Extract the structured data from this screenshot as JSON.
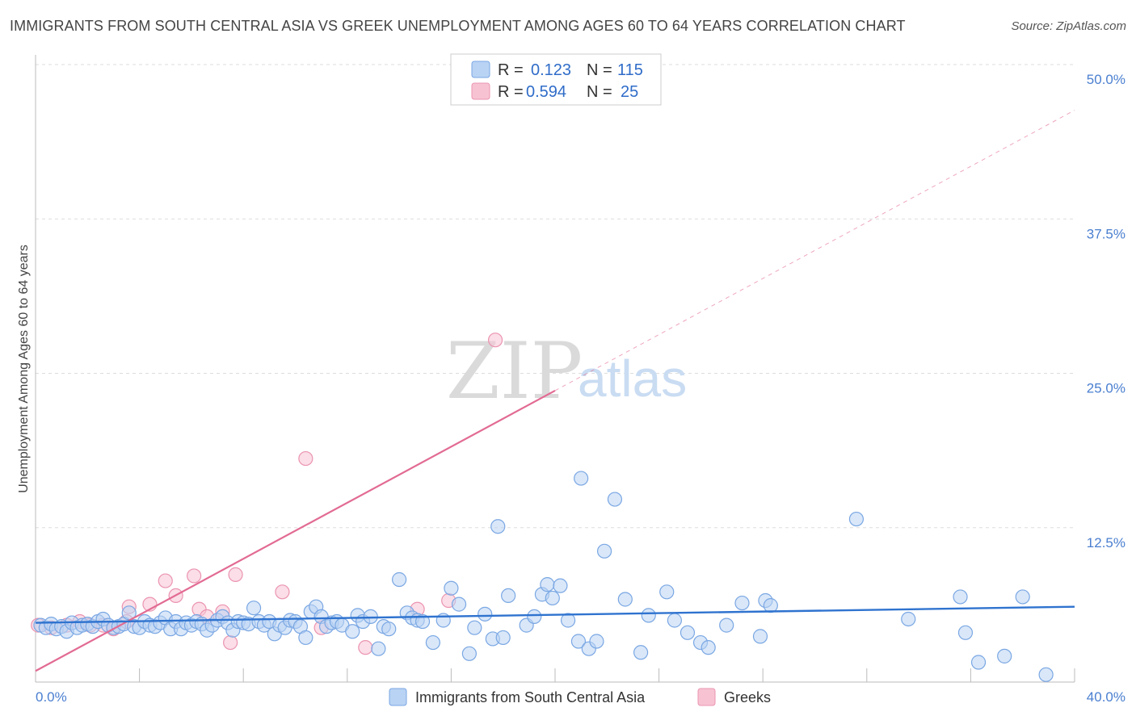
{
  "title": "IMMIGRANTS FROM SOUTH CENTRAL ASIA VS GREEK UNEMPLOYMENT AMONG AGES 60 TO 64 YEARS CORRELATION CHART",
  "source": "Source: ZipAtlas.com",
  "watermark": {
    "part1": "ZIP",
    "part2": "atlas"
  },
  "colors": {
    "blue_fill": "#b9d3f4",
    "blue_stroke": "#7aa7e3",
    "blue_line": "#2f73cf",
    "pink_fill": "#f7c3d3",
    "pink_stroke": "#eb94b0",
    "pink_line": "#e26b93",
    "grid": "#dddddd",
    "tick_text": "#4a7fd0"
  },
  "legend": {
    "rows": [
      {
        "r_label": "R =",
        "r_value": "0.123",
        "n_label": "N =",
        "n_value": "115"
      },
      {
        "r_label": "R =",
        "r_value": "0.594",
        "n_label": "N =",
        "n_value": "25"
      }
    ]
  },
  "chart_data": {
    "type": "scatter",
    "title": "IMMIGRANTS FROM SOUTH CENTRAL ASIA VS GREEK UNEMPLOYMENT AMONG AGES 60 TO 64 YEARS CORRELATION CHART",
    "xlabel": "",
    "ylabel": "Unemployment Among Ages 60 to 64 years",
    "xlim": [
      0,
      40
    ],
    "ylim": [
      0,
      50
    ],
    "x_tick_labels": [
      "0.0%",
      "40.0%"
    ],
    "y_ticks": [
      12.5,
      25.0,
      37.5,
      50.0
    ],
    "y_tick_labels": [
      "12.5%",
      "25.0%",
      "37.5%",
      "50.0%"
    ],
    "grid": true,
    "series": [
      {
        "name": "Immigrants from South Central Asia",
        "r": 0.123,
        "n": 115,
        "trend": {
          "x0": 0,
          "y0": 4.8,
          "x1": 40,
          "y1": 6.1
        },
        "points": [
          [
            0.2,
            4.6
          ],
          [
            0.4,
            4.4
          ],
          [
            0.6,
            4.7
          ],
          [
            0.8,
            4.3
          ],
          [
            1.0,
            4.5
          ],
          [
            1.2,
            4.1
          ],
          [
            1.4,
            4.8
          ],
          [
            1.6,
            4.4
          ],
          [
            1.8,
            4.6
          ],
          [
            2.0,
            4.7
          ],
          [
            2.2,
            4.5
          ],
          [
            2.4,
            4.9
          ],
          [
            2.6,
            5.1
          ],
          [
            2.8,
            4.6
          ],
          [
            3.0,
            4.4
          ],
          [
            3.2,
            4.5
          ],
          [
            3.4,
            4.7
          ],
          [
            3.6,
            5.6
          ],
          [
            3.8,
            4.5
          ],
          [
            4.0,
            4.4
          ],
          [
            4.2,
            4.9
          ],
          [
            4.4,
            4.6
          ],
          [
            4.6,
            4.5
          ],
          [
            4.8,
            4.8
          ],
          [
            5.0,
            5.2
          ],
          [
            5.2,
            4.3
          ],
          [
            5.4,
            4.9
          ],
          [
            5.6,
            4.3
          ],
          [
            5.8,
            4.8
          ],
          [
            6.0,
            4.6
          ],
          [
            6.2,
            4.9
          ],
          [
            6.4,
            4.7
          ],
          [
            6.6,
            4.2
          ],
          [
            6.8,
            4.6
          ],
          [
            7.0,
            5.0
          ],
          [
            7.2,
            5.3
          ],
          [
            7.4,
            4.8
          ],
          [
            7.6,
            4.2
          ],
          [
            7.8,
            4.9
          ],
          [
            8.0,
            4.8
          ],
          [
            8.2,
            4.7
          ],
          [
            8.4,
            6.0
          ],
          [
            8.6,
            4.9
          ],
          [
            8.8,
            4.6
          ],
          [
            9.0,
            4.9
          ],
          [
            9.2,
            3.9
          ],
          [
            9.4,
            4.6
          ],
          [
            9.6,
            4.4
          ],
          [
            9.8,
            5.0
          ],
          [
            10.0,
            4.9
          ],
          [
            10.2,
            4.5
          ],
          [
            10.4,
            3.6
          ],
          [
            10.6,
            5.7
          ],
          [
            10.8,
            6.1
          ],
          [
            11.0,
            5.3
          ],
          [
            11.2,
            4.5
          ],
          [
            11.4,
            4.8
          ],
          [
            11.6,
            4.9
          ],
          [
            11.8,
            4.6
          ],
          [
            12.2,
            4.1
          ],
          [
            12.4,
            5.4
          ],
          [
            12.6,
            4.9
          ],
          [
            12.9,
            5.3
          ],
          [
            13.2,
            2.7
          ],
          [
            13.4,
            4.5
          ],
          [
            13.6,
            4.3
          ],
          [
            14.0,
            8.3
          ],
          [
            14.3,
            5.6
          ],
          [
            14.5,
            5.2
          ],
          [
            14.7,
            5.0
          ],
          [
            14.9,
            4.9
          ],
          [
            15.3,
            3.2
          ],
          [
            15.7,
            5.0
          ],
          [
            16.0,
            7.6
          ],
          [
            16.3,
            6.3
          ],
          [
            16.7,
            2.3
          ],
          [
            16.9,
            4.4
          ],
          [
            17.3,
            5.5
          ],
          [
            17.6,
            3.5
          ],
          [
            17.8,
            12.6
          ],
          [
            18.0,
            3.6
          ],
          [
            18.2,
            7.0
          ],
          [
            18.9,
            4.6
          ],
          [
            19.2,
            5.3
          ],
          [
            19.5,
            7.1
          ],
          [
            19.7,
            7.9
          ],
          [
            19.9,
            6.8
          ],
          [
            20.2,
            7.8
          ],
          [
            20.5,
            5.0
          ],
          [
            20.9,
            3.3
          ],
          [
            21.0,
            16.5
          ],
          [
            21.3,
            2.7
          ],
          [
            21.6,
            3.3
          ],
          [
            21.9,
            10.6
          ],
          [
            22.3,
            14.8
          ],
          [
            22.7,
            6.7
          ],
          [
            23.3,
            2.4
          ],
          [
            23.6,
            5.4
          ],
          [
            24.3,
            7.3
          ],
          [
            24.6,
            5.0
          ],
          [
            25.1,
            4.0
          ],
          [
            25.6,
            3.2
          ],
          [
            25.9,
            2.8
          ],
          [
            26.6,
            4.6
          ],
          [
            27.2,
            6.4
          ],
          [
            27.9,
            3.7
          ],
          [
            28.1,
            6.6
          ],
          [
            28.3,
            6.2
          ],
          [
            31.6,
            13.2
          ],
          [
            33.6,
            5.1
          ],
          [
            35.6,
            6.9
          ],
          [
            35.8,
            4.0
          ],
          [
            36.3,
            1.6
          ],
          [
            37.3,
            2.1
          ],
          [
            38.0,
            6.9
          ],
          [
            38.9,
            0.6
          ]
        ]
      },
      {
        "name": "Greeks",
        "r": 0.594,
        "n": 25,
        "trend": {
          "x0": 0,
          "y0": 0.9,
          "x1": 20,
          "y1": 23.6,
          "dash_x1": 40,
          "dash_y1": 46.3
        },
        "points": [
          [
            0.1,
            4.6
          ],
          [
            0.6,
            4.4
          ],
          [
            1.2,
            4.6
          ],
          [
            1.7,
            4.9
          ],
          [
            2.1,
            4.6
          ],
          [
            2.6,
            4.6
          ],
          [
            3.0,
            4.3
          ],
          [
            3.5,
            4.9
          ],
          [
            3.6,
            6.1
          ],
          [
            4.4,
            6.3
          ],
          [
            5.0,
            8.2
          ],
          [
            5.4,
            7.0
          ],
          [
            6.1,
            8.6
          ],
          [
            6.3,
            5.9
          ],
          [
            6.6,
            5.3
          ],
          [
            7.2,
            5.7
          ],
          [
            7.5,
            3.2
          ],
          [
            7.7,
            8.7
          ],
          [
            9.5,
            7.3
          ],
          [
            10.4,
            18.1
          ],
          [
            11.0,
            4.4
          ],
          [
            12.7,
            2.8
          ],
          [
            14.7,
            5.9
          ],
          [
            15.9,
            6.6
          ],
          [
            17.7,
            27.7
          ]
        ]
      }
    ]
  },
  "bottom_legend": [
    {
      "label": "Immigrants from South Central Asia"
    },
    {
      "label": "Greeks"
    }
  ]
}
